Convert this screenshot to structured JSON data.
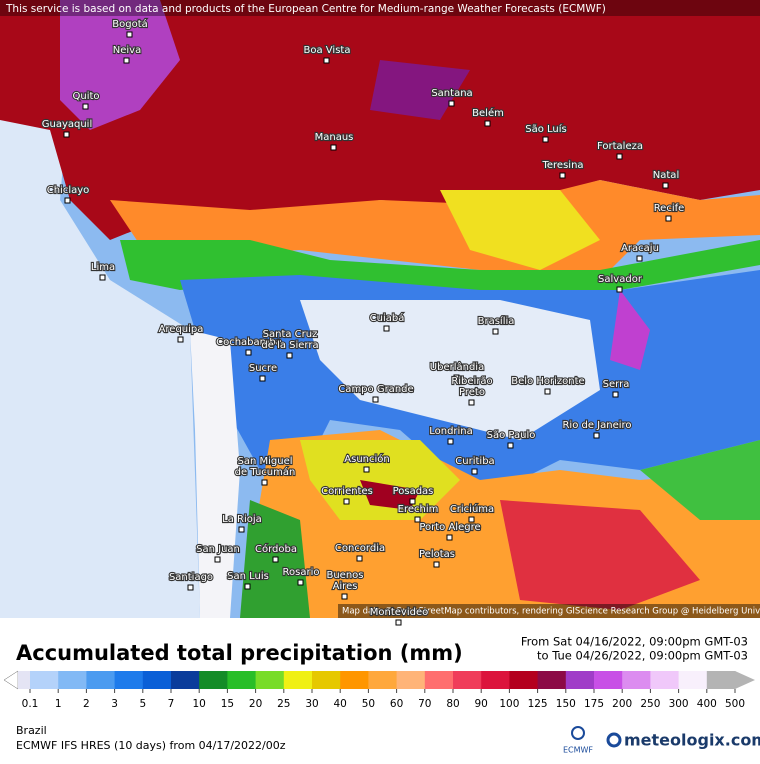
{
  "header": {
    "attribution": "This service is based on data and products of the European Centre for Medium-range Weather Forecasts (ECMWF)"
  },
  "map": {
    "credits": "Map data © OpenStreetMap contributors, rendering GIScience Research Group @ Heidelberg University",
    "cities": [
      {
        "label": [
          "Bogotá"
        ]
      },
      {
        "label": [
          "Neiva"
        ]
      },
      {
        "label": [
          "Boa Vista"
        ]
      },
      {
        "label": [
          "Quito"
        ]
      },
      {
        "label": [
          "Santana"
        ]
      },
      {
        "label": [
          "Guayaquil"
        ]
      },
      {
        "label": [
          "Belém"
        ]
      },
      {
        "label": [
          "São Luís"
        ]
      },
      {
        "label": [
          "Manaus"
        ]
      },
      {
        "label": [
          "Fortaleza"
        ]
      },
      {
        "label": [
          "Teresina"
        ]
      },
      {
        "label": [
          "Natal"
        ]
      },
      {
        "label": [
          "Chiclayo"
        ]
      },
      {
        "label": [
          "Recife"
        ]
      },
      {
        "label": [
          "Aracaju"
        ]
      },
      {
        "label": [
          "Lima"
        ]
      },
      {
        "label": [
          "Salvador"
        ]
      },
      {
        "label": [
          "Arequipa"
        ]
      },
      {
        "label": [
          "Cuiabá"
        ]
      },
      {
        "label": [
          "Brasília"
        ]
      },
      {
        "label": [
          "Cochabamba"
        ]
      },
      {
        "label": [
          "Santa Cruz",
          "de la Sierra"
        ]
      },
      {
        "label": [
          "Sucre"
        ]
      },
      {
        "label": [
          "Uberlândia"
        ]
      },
      {
        "label": [
          "Belo Horizonte"
        ]
      },
      {
        "label": [
          "Serra"
        ]
      },
      {
        "label": [
          "Campo Grande"
        ]
      },
      {
        "label": [
          "Ribeirão",
          "Preto"
        ]
      },
      {
        "label": [
          "Rio de Janeiro"
        ]
      },
      {
        "label": [
          "Londrina"
        ]
      },
      {
        "label": [
          "São Paulo"
        ]
      },
      {
        "label": [
          "Asunción"
        ]
      },
      {
        "label": [
          "Curitiba"
        ]
      },
      {
        "label": [
          "San Miguel",
          "de Tucumán"
        ]
      },
      {
        "label": [
          "Corrientes"
        ]
      },
      {
        "label": [
          "Posadas"
        ]
      },
      {
        "label": [
          "Erechim"
        ]
      },
      {
        "label": [
          "Criciúma"
        ]
      },
      {
        "label": [
          "La Rioja"
        ]
      },
      {
        "label": [
          "Porto Alegre"
        ]
      },
      {
        "label": [
          "San Juan"
        ]
      },
      {
        "label": [
          "Córdoba"
        ]
      },
      {
        "label": [
          "Concordia"
        ]
      },
      {
        "label": [
          "Pelotas"
        ]
      },
      {
        "label": [
          "Rosario"
        ]
      },
      {
        "label": [
          "Santiago"
        ]
      },
      {
        "label": [
          "San Luis"
        ]
      },
      {
        "label": [
          "Buenos",
          "Aires"
        ]
      },
      {
        "label": [
          "Montevideo"
        ]
      }
    ]
  },
  "panel": {
    "title": "Accumulated total precipitation (mm)",
    "period_from": "From Sat 04/16/2022, 09:00pm GMT-03",
    "period_to": "to Tue 04/26/2022, 09:00pm GMT-03",
    "region": "Brazil",
    "model": "ECMWF IFS HRES (10 days) from 04/17/2022/00z",
    "ecmwf": "ECMWF",
    "brand": "meteologix.com"
  },
  "legend": {
    "ticks": [
      0.1,
      1,
      2,
      3,
      5,
      7,
      10,
      15,
      20,
      25,
      30,
      40,
      50,
      60,
      70,
      80,
      90,
      100,
      125,
      150,
      175,
      200,
      250,
      300,
      400,
      500
    ],
    "colors": [
      "#ffffff",
      "#e4e4f4",
      "#b4d2fa",
      "#82b9f5",
      "#4b9bf0",
      "#1e7beb",
      "#0a5fd7",
      "#0a3c9b",
      "#148c28",
      "#28be28",
      "#78dc28",
      "#f0f014",
      "#e6c800",
      "#ff9600",
      "#ffa83c",
      "#ffb478",
      "#ff6e6e",
      "#f03c5a",
      "#dc143c",
      "#b4001e",
      "#8c0a46",
      "#a03cc8",
      "#c850e6",
      "#dc8cf0",
      "#f0c8fa",
      "#f8f0fc",
      "#b4b4b4"
    ]
  }
}
